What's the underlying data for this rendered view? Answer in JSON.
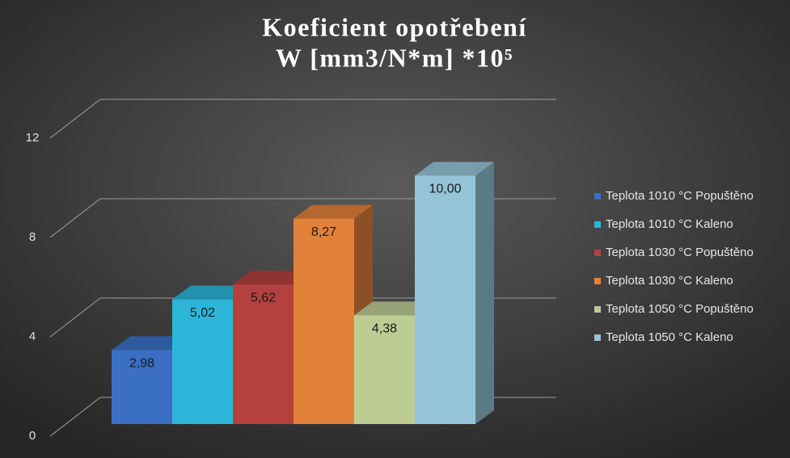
{
  "chart_data": {
    "type": "bar3d",
    "title": [
      "Koeficient opotřebení",
      "W [mm3/N*m]  *10⁵"
    ],
    "categories": [
      null
    ],
    "series": [
      {
        "name": "Teplota 1010 °C Popuštěno",
        "color": "#3a6fc4",
        "values": [
          2.98
        ],
        "value_labels": [
          "2,98"
        ]
      },
      {
        "name": "Teplota 1010 °C Kaleno",
        "color": "#2cb5d8",
        "values": [
          5.02
        ],
        "value_labels": [
          "5,02"
        ]
      },
      {
        "name": "Teplota 1030 °C Popuštěno",
        "color": "#b4413f",
        "values": [
          5.62
        ],
        "value_labels": [
          "5,62"
        ]
      },
      {
        "name": "Teplota 1030 °C Kaleno",
        "color": "#e2813a",
        "values": [
          8.27
        ],
        "value_labels": [
          "8,27"
        ]
      },
      {
        "name": "Teplota 1050 °C Popuštěno",
        "color": "#bdcc93",
        "values": [
          4.38
        ],
        "value_labels": [
          "4,38"
        ]
      },
      {
        "name": "Teplota 1050 °C Kaleno",
        "color": "#95c4d8",
        "values": [
          10.0
        ],
        "value_labels": [
          "10,00"
        ]
      }
    ],
    "ylim": [
      0,
      12
    ],
    "yticks": [
      0,
      4,
      8,
      12
    ],
    "grid": true,
    "legend": "right"
  }
}
